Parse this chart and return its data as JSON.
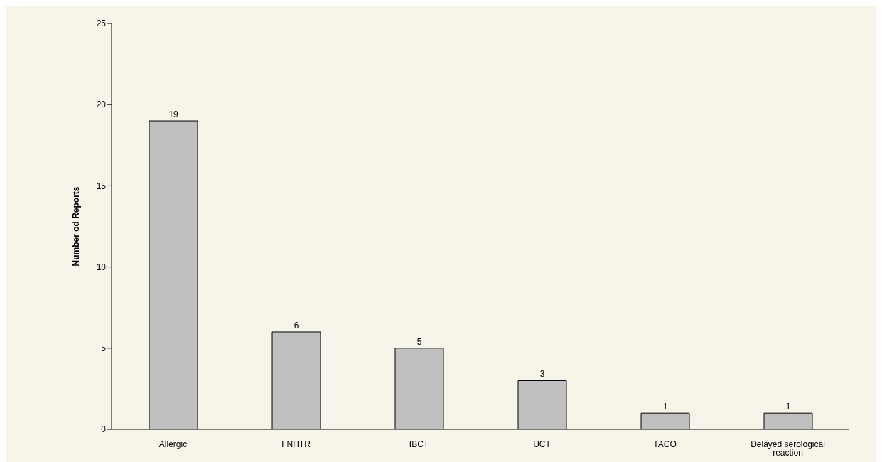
{
  "chart_data": {
    "type": "bar",
    "ylabel": "Number od Reports",
    "categories": [
      "Allergic",
      "FNHTR",
      "IBCT",
      "UCT",
      "TACO",
      "Delayed serological reaction"
    ],
    "values": [
      19,
      6,
      5,
      3,
      1,
      1
    ],
    "color": "#c0c0c0",
    "ylim": [
      0,
      25
    ],
    "yticks": [
      0,
      5,
      10,
      15,
      20,
      25
    ],
    "grid": false,
    "legend": false,
    "data_labels": true
  }
}
